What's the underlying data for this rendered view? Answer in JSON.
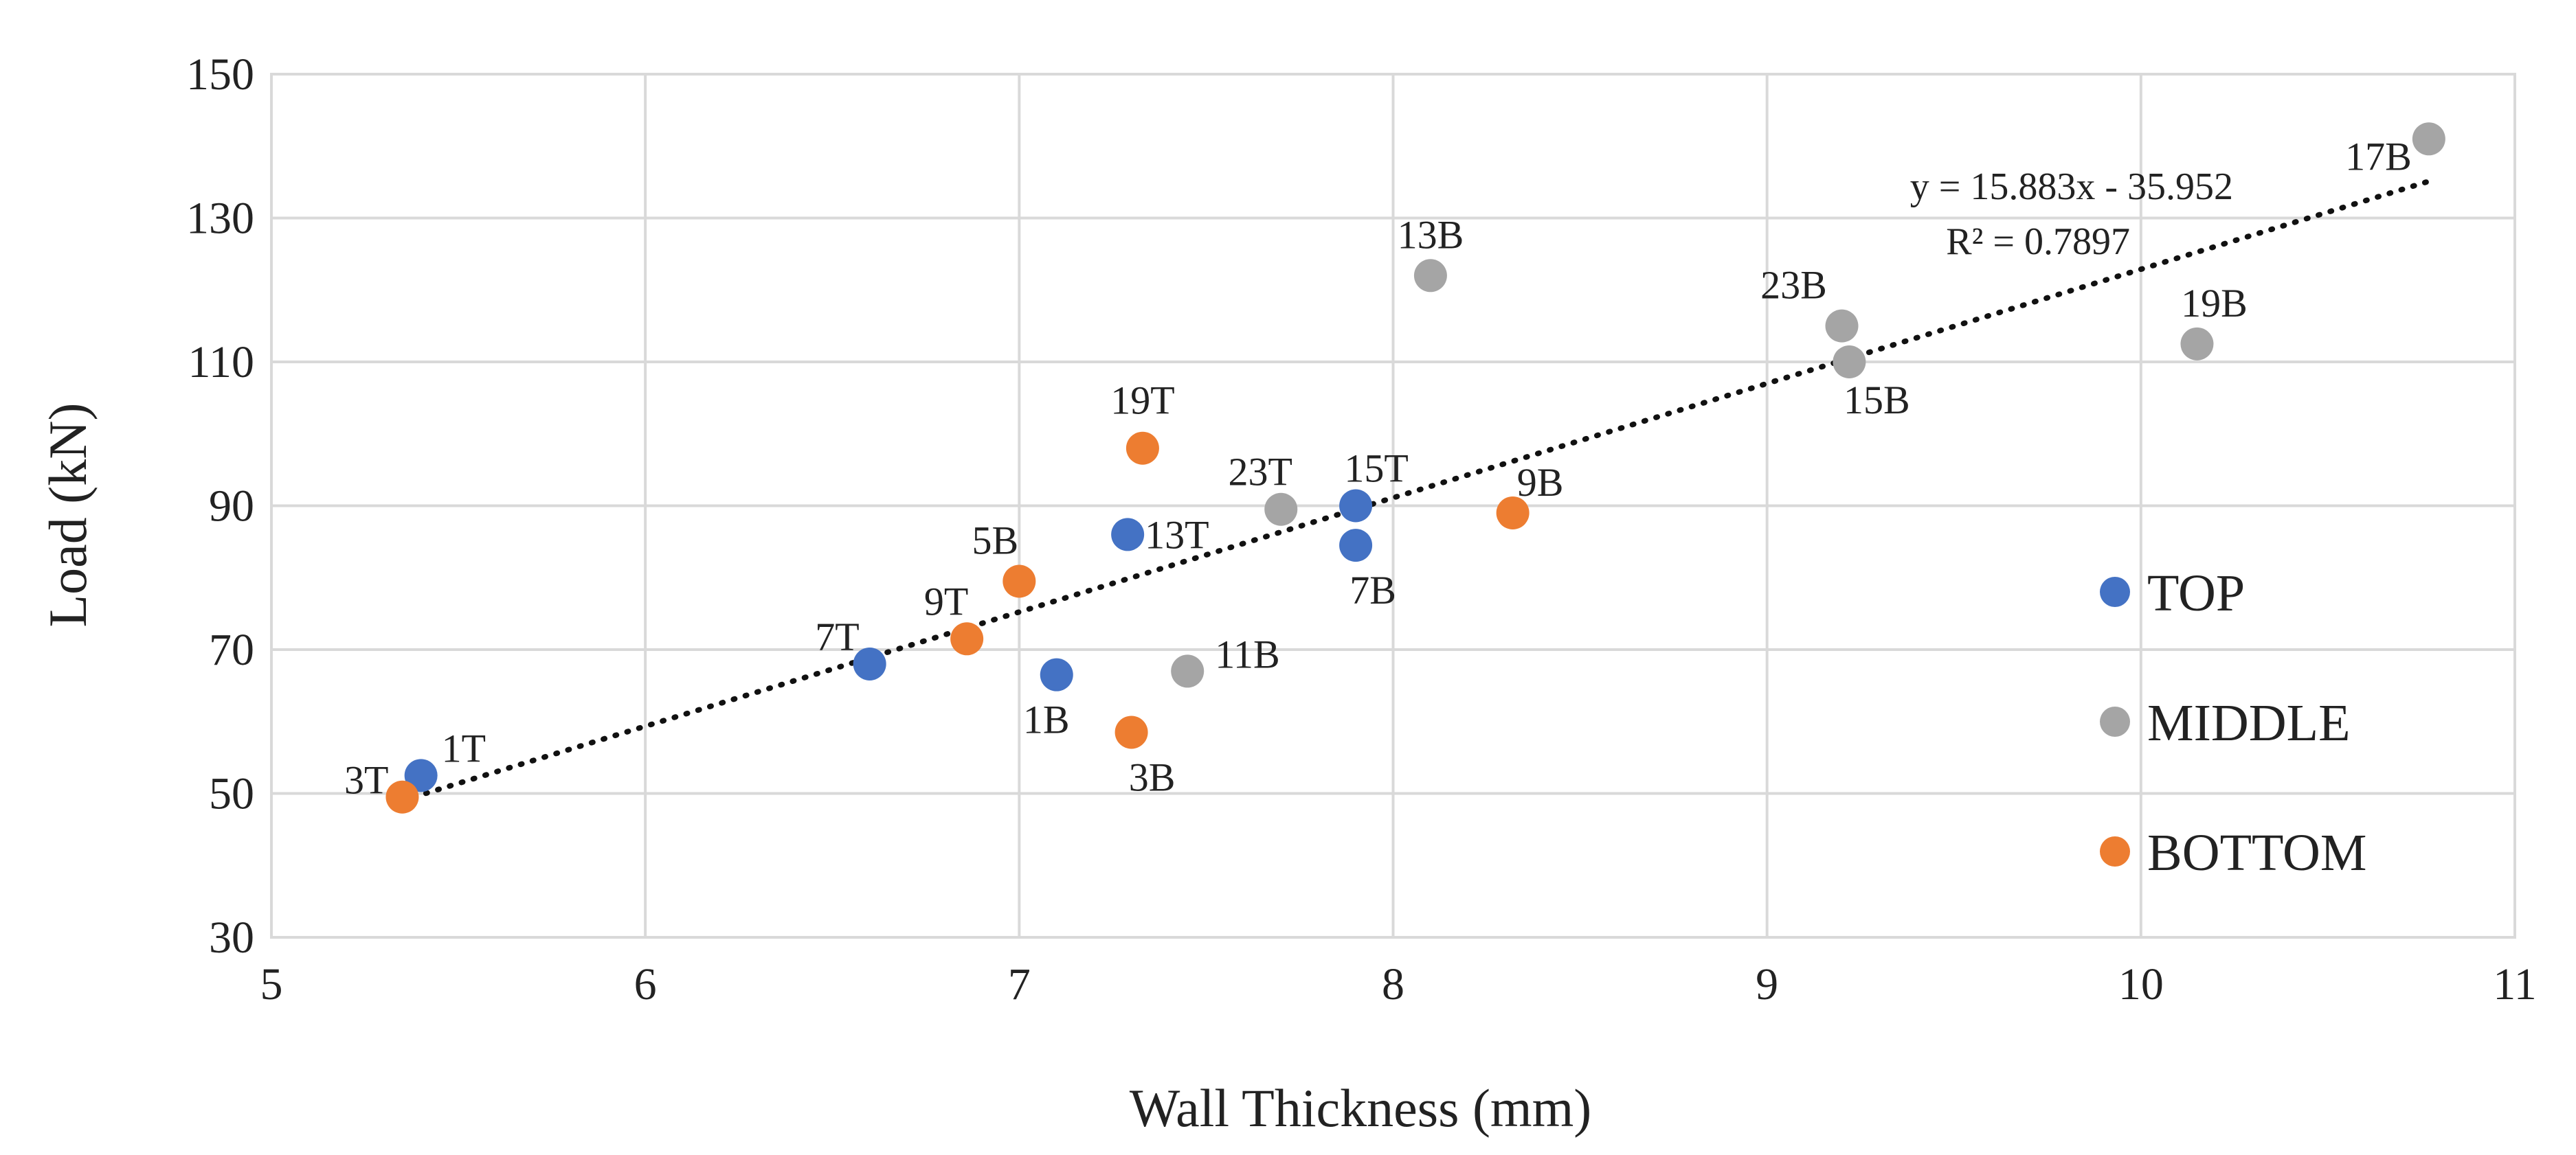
{
  "chart_data": {
    "type": "scatter",
    "title": "",
    "xlabel": "Wall Thickness (mm)",
    "ylabel": "Load (kN)",
    "xlim": [
      5,
      11
    ],
    "ylim": [
      30,
      150
    ],
    "xticks": [
      "5",
      "6",
      "7",
      "8",
      "9",
      "10",
      "11"
    ],
    "yticks": [
      "30",
      "50",
      "70",
      "90",
      "110",
      "130",
      "150"
    ],
    "grid": true,
    "legend_position": "right",
    "series": [
      {
        "name": "TOP",
        "color": "#4472c4",
        "points": [
          {
            "x": 5.4,
            "y": 52.5,
            "label": "1T"
          },
          {
            "x": 6.6,
            "y": 68,
            "label": "7T"
          },
          {
            "x": 7.1,
            "y": 66.5,
            "label": "1B"
          },
          {
            "x": 7.29,
            "y": 86,
            "label": "13T"
          },
          {
            "x": 7.9,
            "y": 90,
            "label": "15T"
          },
          {
            "x": 7.9,
            "y": 84.5,
            "label": "7B"
          }
        ]
      },
      {
        "name": "MIDDLE",
        "color": "#a5a5a5",
        "points": [
          {
            "x": 7.45,
            "y": 67,
            "label": "11B"
          },
          {
            "x": 7.7,
            "y": 89.5,
            "label": "23T"
          },
          {
            "x": 8.1,
            "y": 122,
            "label": "13B"
          },
          {
            "x": 9.2,
            "y": 115,
            "label": "23B"
          },
          {
            "x": 9.22,
            "y": 110,
            "label": "15B"
          },
          {
            "x": 10.15,
            "y": 112.5,
            "label": "19B"
          },
          {
            "x": 10.77,
            "y": 141,
            "label": "17B"
          }
        ]
      },
      {
        "name": "BOTTOM",
        "color": "#ed7d31",
        "points": [
          {
            "x": 5.35,
            "y": 49.5,
            "label": "3T"
          },
          {
            "x": 6.86,
            "y": 71.5,
            "label": "9T"
          },
          {
            "x": 7.0,
            "y": 79.5,
            "label": "5B"
          },
          {
            "x": 7.3,
            "y": 58.5,
            "label": "3B"
          },
          {
            "x": 7.33,
            "y": 98,
            "label": "19T"
          },
          {
            "x": 8.32,
            "y": 89,
            "label": "9B"
          }
        ]
      }
    ],
    "trendline": {
      "slope": 15.883,
      "intercept": -35.952,
      "x_range": [
        5.35,
        10.77
      ],
      "equation": "y = 15.883x - 35.952",
      "r_squared": "R² = 0.7897"
    }
  }
}
